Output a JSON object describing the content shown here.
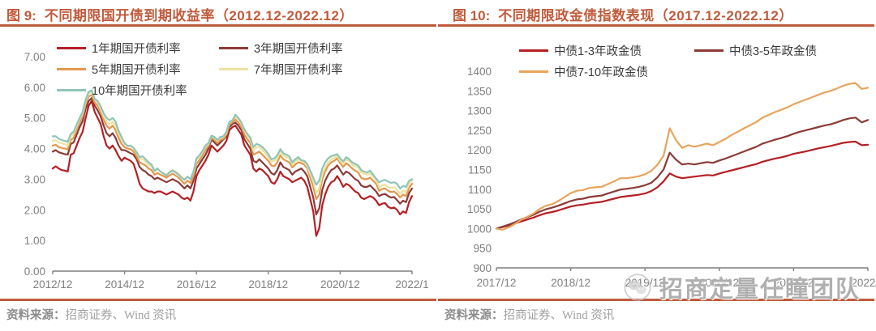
{
  "colors": {
    "accent": "#c05b3c",
    "axis_text": "#7f7f7f",
    "legend_text": "#3a3a3a",
    "source_text": "#a0a0a0",
    "watermark_text": "#8f8f8f"
  },
  "watermark": {
    "icon": "wechat-icon",
    "text": "招商定量任瞳团队"
  },
  "panels": [
    {
      "fig_label": "图 9:",
      "title": "不同期限国开债到期收益率（2012.12-2022.12）",
      "source_label": "资料来源：",
      "source_text": "招商证券、Wind 资讯"
    },
    {
      "fig_label": "图 10:",
      "title": "不同期限政金债指数表现（2017.12-2022.12）",
      "source_label": "资料来源：",
      "source_text": "招商证券、Wind 资讯"
    }
  ],
  "chart_data": [
    {
      "type": "line",
      "title": "不同期限国开债到期收益率（2012.12-2022.12）",
      "x_start": "2012/12",
      "x_end": "2022/12",
      "frequency": "monthly",
      "x_tick_labels": [
        "2012/12",
        "2014/12",
        "2016/12",
        "2018/12",
        "2020/12",
        "2022/1"
      ],
      "ylim": [
        0,
        7
      ],
      "y_tick_labels": [
        "0.00",
        "1.00",
        "2.00",
        "3.00",
        "4.00",
        "5.00",
        "6.00",
        "7.00"
      ],
      "grid": false,
      "legend_position": "top",
      "series": [
        {
          "key": "1yr",
          "name": "1年期国开债利率",
          "color": "#b51f24",
          "values": [
            3.35,
            3.42,
            3.35,
            3.3,
            3.28,
            3.25,
            3.8,
            3.85,
            4.1,
            4.35,
            4.55,
            5.0,
            5.4,
            5.55,
            5.2,
            5.0,
            4.8,
            4.4,
            4.1,
            4.0,
            4.1,
            3.95,
            3.75,
            3.6,
            3.7,
            3.65,
            3.6,
            3.5,
            3.2,
            2.85,
            2.7,
            2.65,
            2.6,
            2.6,
            2.55,
            2.6,
            2.6,
            2.55,
            2.5,
            2.55,
            2.6,
            2.55,
            2.5,
            2.4,
            2.35,
            2.4,
            2.3,
            2.6,
            3.1,
            3.3,
            3.45,
            3.6,
            3.8,
            4.1,
            4.0,
            3.9,
            4.0,
            4.1,
            4.25,
            4.6,
            4.7,
            4.75,
            4.6,
            4.45,
            4.1,
            3.95,
            3.8,
            3.35,
            3.25,
            3.35,
            3.3,
            3.2,
            3.1,
            2.9,
            2.85,
            3.0,
            3.25,
            3.1,
            3.05,
            3.0,
            2.9,
            2.95,
            3.0,
            3.05,
            2.95,
            2.75,
            2.35,
            1.95,
            1.15,
            1.4,
            2.15,
            2.5,
            2.75,
            2.9,
            2.95,
            3.1,
            2.95,
            2.75,
            2.85,
            2.8,
            2.7,
            2.6,
            2.55,
            2.4,
            2.35,
            2.4,
            2.45,
            2.4,
            2.3,
            2.15,
            2.2,
            2.22,
            2.1,
            2.05,
            2.08,
            2.0,
            1.85,
            1.95,
            1.9,
            2.25,
            2.45
          ]
        },
        {
          "key": "3yr",
          "name": "3年期国开债利率",
          "color": "#8c3b36",
          "values": [
            3.9,
            3.95,
            3.88,
            3.85,
            3.82,
            3.8,
            4.15,
            4.2,
            4.45,
            4.7,
            4.9,
            5.3,
            5.55,
            5.65,
            5.4,
            5.25,
            5.05,
            4.75,
            4.5,
            4.4,
            4.5,
            4.35,
            4.1,
            3.95,
            3.95,
            3.9,
            3.85,
            3.8,
            3.65,
            3.4,
            3.3,
            3.25,
            3.15,
            3.1,
            3.0,
            3.05,
            3.0,
            2.95,
            2.9,
            2.95,
            3.0,
            2.95,
            2.9,
            2.8,
            2.7,
            2.8,
            2.7,
            2.95,
            3.35,
            3.5,
            3.65,
            3.8,
            4.0,
            4.3,
            4.2,
            4.1,
            4.2,
            4.3,
            4.4,
            4.7,
            4.8,
            4.85,
            4.75,
            4.6,
            4.3,
            4.15,
            4.0,
            3.6,
            3.55,
            3.65,
            3.55,
            3.45,
            3.35,
            3.2,
            3.15,
            3.3,
            3.55,
            3.4,
            3.35,
            3.3,
            3.15,
            3.25,
            3.3,
            3.35,
            3.25,
            3.1,
            2.75,
            2.4,
            1.85,
            2.05,
            2.65,
            2.95,
            3.15,
            3.3,
            3.35,
            3.45,
            3.3,
            3.15,
            3.25,
            3.2,
            3.1,
            3.0,
            2.95,
            2.8,
            2.75,
            2.75,
            2.8,
            2.7,
            2.6,
            2.45,
            2.5,
            2.52,
            2.45,
            2.4,
            2.42,
            2.32,
            2.2,
            2.3,
            2.25,
            2.55,
            2.7
          ]
        },
        {
          "key": "5yr",
          "name": "5年期国开债利率",
          "color": "#e2984e",
          "values": [
            4.1,
            4.12,
            4.05,
            4.02,
            4.0,
            3.98,
            4.28,
            4.35,
            4.6,
            4.85,
            5.05,
            5.45,
            5.7,
            5.75,
            5.5,
            5.4,
            5.2,
            4.95,
            4.75,
            4.65,
            4.75,
            4.6,
            4.35,
            4.15,
            4.05,
            4.0,
            3.98,
            3.9,
            3.75,
            3.55,
            3.5,
            3.45,
            3.35,
            3.3,
            3.15,
            3.2,
            3.15,
            3.1,
            3.05,
            3.12,
            3.18,
            3.12,
            3.05,
            2.95,
            2.85,
            2.95,
            2.88,
            3.1,
            3.5,
            3.62,
            3.78,
            3.95,
            4.08,
            4.35,
            4.28,
            4.18,
            4.28,
            4.32,
            4.45,
            4.78,
            4.85,
            4.95,
            4.85,
            4.7,
            4.45,
            4.3,
            4.18,
            3.8,
            3.85,
            3.9,
            3.8,
            3.7,
            3.6,
            3.45,
            3.42,
            3.55,
            3.78,
            3.65,
            3.6,
            3.55,
            3.38,
            3.48,
            3.55,
            3.52,
            3.48,
            3.35,
            3.05,
            2.75,
            2.35,
            2.5,
            3.0,
            3.25,
            3.45,
            3.55,
            3.6,
            3.68,
            3.52,
            3.4,
            3.52,
            3.45,
            3.35,
            3.28,
            3.22,
            3.05,
            3.0,
            3.0,
            3.05,
            2.95,
            2.85,
            2.62,
            2.68,
            2.7,
            2.62,
            2.58,
            2.6,
            2.52,
            2.4,
            2.5,
            2.45,
            2.72,
            2.85
          ]
        },
        {
          "key": "7yr",
          "name": "7年期国开债利率",
          "color": "#eee2a0",
          "values": [
            4.25,
            4.27,
            4.2,
            4.17,
            4.14,
            4.1,
            4.4,
            4.48,
            4.72,
            4.95,
            5.15,
            5.55,
            5.8,
            5.85,
            5.6,
            5.5,
            5.3,
            5.05,
            4.88,
            4.78,
            4.88,
            4.75,
            4.48,
            4.28,
            4.15,
            4.1,
            4.08,
            4.0,
            3.85,
            3.68,
            3.65,
            3.58,
            3.48,
            3.42,
            3.25,
            3.32,
            3.25,
            3.2,
            3.15,
            3.25,
            3.3,
            3.25,
            3.18,
            3.08,
            2.98,
            3.08,
            3.0,
            3.22,
            3.62,
            3.72,
            3.88,
            4.05,
            4.15,
            4.4,
            4.35,
            4.25,
            4.35,
            4.38,
            4.52,
            4.85,
            4.92,
            5.05,
            4.95,
            4.8,
            4.58,
            4.42,
            4.3,
            3.95,
            4.05,
            4.05,
            3.95,
            3.85,
            3.72,
            3.58,
            3.6,
            3.68,
            3.9,
            3.78,
            3.72,
            3.68,
            3.48,
            3.58,
            3.65,
            3.58,
            3.55,
            3.42,
            3.18,
            2.92,
            2.55,
            2.7,
            3.15,
            3.38,
            3.55,
            3.65,
            3.7,
            3.76,
            3.6,
            3.5,
            3.65,
            3.58,
            3.48,
            3.42,
            3.38,
            3.22,
            3.18,
            3.15,
            3.2,
            3.08,
            2.98,
            2.74,
            2.8,
            2.82,
            2.75,
            2.72,
            2.74,
            2.65,
            2.52,
            2.62,
            2.58,
            2.85,
            2.95
          ]
        },
        {
          "key": "10yr",
          "name": "10年期国开债利率",
          "color": "#8fc4ba",
          "values": [
            4.4,
            4.4,
            4.32,
            4.28,
            4.25,
            4.22,
            4.48,
            4.55,
            4.78,
            5.0,
            5.2,
            5.6,
            5.85,
            5.9,
            5.62,
            5.55,
            5.38,
            5.15,
            5.0,
            4.92,
            5.0,
            4.88,
            4.58,
            4.38,
            4.18,
            4.08,
            4.1,
            4.02,
            3.88,
            3.72,
            3.75,
            3.65,
            3.55,
            3.48,
            3.28,
            3.35,
            3.25,
            3.18,
            3.12,
            3.22,
            3.28,
            3.22,
            3.15,
            3.05,
            2.98,
            3.08,
            3.0,
            3.25,
            3.68,
            3.78,
            3.92,
            4.1,
            4.18,
            4.42,
            4.38,
            4.28,
            4.38,
            4.4,
            4.55,
            4.88,
            4.92,
            5.1,
            5.0,
            4.85,
            4.62,
            4.48,
            4.35,
            4.05,
            4.15,
            4.12,
            4.05,
            3.95,
            3.82,
            3.65,
            3.68,
            3.78,
            3.98,
            3.85,
            3.8,
            3.75,
            3.55,
            3.65,
            3.72,
            3.62,
            3.6,
            3.5,
            3.28,
            3.05,
            2.82,
            2.95,
            3.35,
            3.55,
            3.68,
            3.75,
            3.78,
            3.82,
            3.68,
            3.58,
            3.72,
            3.65,
            3.55,
            3.5,
            3.45,
            3.3,
            3.25,
            3.22,
            3.28,
            3.15,
            3.02,
            2.9,
            2.95,
            2.98,
            2.92,
            2.88,
            2.9,
            2.85,
            2.7,
            2.78,
            2.75,
            2.95,
            3.0
          ]
        }
      ]
    },
    {
      "type": "line",
      "title": "不同期限政金债指数表现（2017.12-2022.12）",
      "x_start": "2017/12",
      "x_end": "2022/12",
      "frequency": "monthly",
      "x_tick_labels": [
        "2017/12",
        "2018/12",
        "2019/12",
        "2020/12",
        "2021/12",
        "2022/1"
      ],
      "ylim": [
        900,
        1400
      ],
      "y_tick_labels": [
        "900",
        "950",
        "1000",
        "1050",
        "1100",
        "1150",
        "1200",
        "1250",
        "1300",
        "1350",
        "1400"
      ],
      "grid": false,
      "legend_position": "top",
      "series": [
        {
          "key": "cdb-1-3yr",
          "name": "中债1-3年政金债",
          "color": "#b51f24",
          "values": [
            1000,
            1004,
            1008,
            1013,
            1018,
            1023,
            1028,
            1034,
            1039,
            1042,
            1046,
            1051,
            1056,
            1059,
            1061,
            1064,
            1066,
            1068,
            1072,
            1076,
            1080,
            1082,
            1084,
            1086,
            1089,
            1095,
            1105,
            1120,
            1140,
            1132,
            1128,
            1130,
            1132,
            1134,
            1136,
            1135,
            1140,
            1144,
            1148,
            1152,
            1156,
            1160,
            1164,
            1170,
            1174,
            1178,
            1181,
            1185,
            1190,
            1193,
            1196,
            1200,
            1204,
            1207,
            1210,
            1214,
            1218,
            1220,
            1221,
            1212,
            1213
          ]
        },
        {
          "key": "cdb-3-5yr",
          "name": "中债3-5年政金债",
          "color": "#8c3b36",
          "values": [
            1000,
            1005,
            1010,
            1016,
            1023,
            1029,
            1035,
            1043,
            1049,
            1053,
            1058,
            1064,
            1070,
            1074,
            1076,
            1080,
            1082,
            1084,
            1089,
            1094,
            1099,
            1101,
            1103,
            1106,
            1110,
            1116,
            1130,
            1150,
            1193,
            1175,
            1163,
            1165,
            1163,
            1166,
            1169,
            1167,
            1173,
            1178,
            1184,
            1190,
            1196,
            1202,
            1208,
            1216,
            1221,
            1226,
            1230,
            1235,
            1241,
            1246,
            1250,
            1254,
            1258,
            1262,
            1265,
            1270,
            1276,
            1280,
            1282,
            1270,
            1276
          ]
        },
        {
          "key": "cdb-7-10yr",
          "name": "中债7-10年政金债",
          "color": "#e8a45c",
          "values": [
            1000,
            997,
            1003,
            1012,
            1022,
            1030,
            1038,
            1050,
            1058,
            1062,
            1070,
            1080,
            1090,
            1096,
            1098,
            1103,
            1105,
            1106,
            1113,
            1120,
            1128,
            1128,
            1130,
            1133,
            1138,
            1146,
            1162,
            1185,
            1255,
            1225,
            1205,
            1212,
            1208,
            1212,
            1216,
            1212,
            1220,
            1228,
            1238,
            1246,
            1255,
            1263,
            1271,
            1282,
            1289,
            1296,
            1302,
            1308,
            1316,
            1322,
            1328,
            1334,
            1340,
            1346,
            1350,
            1356,
            1363,
            1368,
            1370,
            1355,
            1358
          ]
        }
      ]
    }
  ]
}
